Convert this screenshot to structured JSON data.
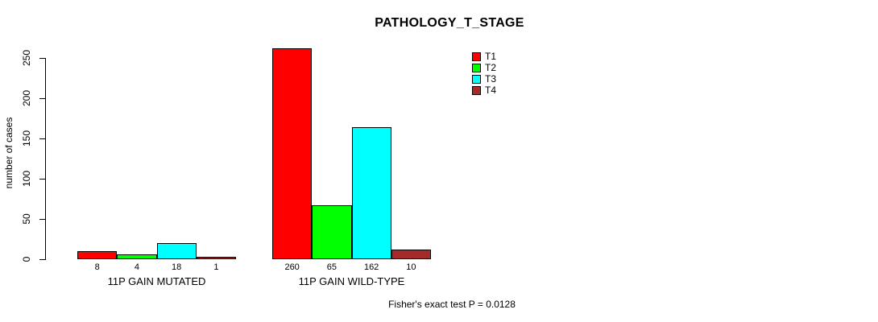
{
  "chart_data": {
    "type": "bar",
    "title": "PATHOLOGY_T_STAGE",
    "ylabel": "number of cases",
    "xlabel": "",
    "ylim": [
      0,
      260
    ],
    "yticks": [
      0,
      50,
      100,
      150,
      200,
      250
    ],
    "grid": false,
    "legend_position": "top-right",
    "categories": [
      "11P GAIN MUTATED",
      "11P GAIN WILD-TYPE"
    ],
    "series": [
      {
        "name": "T1",
        "color": "#FF0000",
        "values": [
          8,
          260
        ]
      },
      {
        "name": "T2",
        "color": "#00FF00",
        "values": [
          4,
          65
        ]
      },
      {
        "name": "T3",
        "color": "#00FFFF",
        "values": [
          18,
          162
        ]
      },
      {
        "name": "T4",
        "color": "#A52A2A",
        "values": [
          1,
          10
        ]
      }
    ],
    "bar_value_labels": [
      [
        8,
        4,
        18,
        1
      ],
      [
        260,
        65,
        162,
        10
      ]
    ],
    "annotation": "Fisher's exact test P = 0.0128"
  }
}
